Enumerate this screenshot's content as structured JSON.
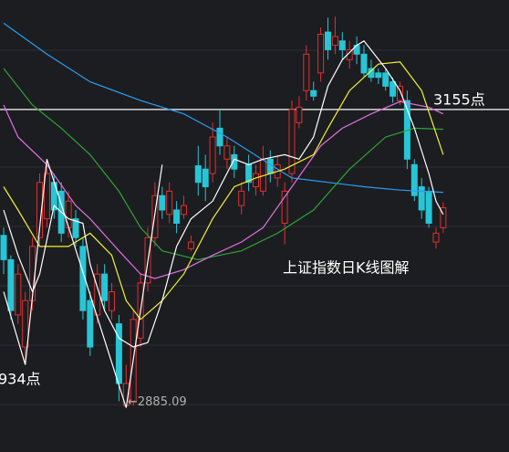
{
  "chart_data": {
    "type": "candlestick",
    "title": "上证指数日K线图解",
    "ylim": [
      2845,
      3254
    ],
    "up_color": "#e0302f",
    "down_color": "#26c6d6",
    "open": [
      3041,
      3019,
      2969,
      2940,
      2982,
      3039,
      3056,
      3089,
      3081,
      3048,
      3056,
      3031,
      2982,
      2969,
      3006,
      2973,
      2961,
      2887,
      2891,
      2948,
      2998,
      3039,
      3077,
      3060,
      3064,
      3060,
      3029,
      3104,
      3101,
      3097,
      3138,
      3110,
      3114,
      3068,
      3105,
      3085,
      3081,
      3110,
      3093,
      3052,
      3097,
      3143,
      3172,
      3172,
      3188,
      3225,
      3213,
      3217,
      3200,
      3213,
      3205,
      3192,
      3188,
      3188,
      3180,
      3163,
      3163,
      3105,
      3085,
      3081,
      3035,
      3048
    ],
    "high": [
      3048,
      3023,
      3015,
      2990,
      3039,
      3097,
      3110,
      3097,
      3089,
      3081,
      3064,
      3039,
      2990,
      3015,
      3015,
      2998,
      2969,
      2924,
      2973,
      3006,
      3048,
      3089,
      3085,
      3089,
      3072,
      3077,
      3041,
      3122,
      3114,
      3143,
      3155,
      3130,
      3122,
      3089,
      3114,
      3105,
      3122,
      3118,
      3114,
      3089,
      3163,
      3167,
      3213,
      3180,
      3229,
      3238,
      3239,
      3225,
      3217,
      3221,
      3213,
      3200,
      3192,
      3192,
      3184,
      3180,
      3172,
      3110,
      3093,
      3085,
      3048,
      3071
    ],
    "low": [
      3006,
      2965,
      2961,
      2924,
      2973,
      3031,
      3048,
      3056,
      3035,
      3039,
      3031,
      2965,
      2932,
      2961,
      2973,
      2965,
      2891,
      2885.09,
      2887,
      2940,
      2990,
      3031,
      3056,
      3052,
      3043,
      3056,
      3027,
      3077,
      3072,
      3089,
      3114,
      3101,
      3093,
      3060,
      3081,
      3077,
      3077,
      3089,
      3085,
      3033,
      3089,
      3138,
      3163,
      3163,
      3180,
      3200,
      3205,
      3200,
      3192,
      3196,
      3184,
      3180,
      3178,
      3172,
      3161,
      3159,
      3101,
      3072,
      3056,
      3048,
      3029,
      3043
    ],
    "close": [
      3019,
      2973,
      3006,
      2982,
      3031,
      3089,
      3097,
      3064,
      3043,
      3072,
      3039,
      2973,
      2940,
      3006,
      2982,
      2990,
      2907,
      2907,
      2965,
      2998,
      3039,
      3077,
      3064,
      3081,
      3052,
      3068,
      3035,
      3089,
      3085,
      3130,
      3122,
      3122,
      3101,
      3081,
      3089,
      3097,
      3110,
      3097,
      3105,
      3081,
      3155,
      3157,
      3205,
      3167,
      3223,
      3209,
      3221,
      3209,
      3209,
      3205,
      3188,
      3184,
      3184,
      3176,
      3167,
      3176,
      3110,
      3077,
      3064,
      3052,
      3043,
      3066
    ],
    "series": [
      {
        "color": "#2a9df4",
        "x": [
          0,
          6,
          12,
          19,
          25,
          31,
          37,
          40,
          45,
          50,
          55,
          61
        ],
        "values": [
          3233,
          3205,
          3180,
          3163,
          3151,
          3130,
          3105,
          3093,
          3089,
          3085,
          3082,
          3080
        ]
      },
      {
        "color": "#2fa335",
        "x": [
          0,
          4,
          8,
          12,
          16,
          19,
          22,
          27,
          33,
          38,
          43,
          48,
          53,
          57,
          61
        ],
        "values": [
          3192,
          3159,
          3138,
          3114,
          3081,
          3048,
          3027,
          3019,
          3027,
          3043,
          3064,
          3101,
          3130,
          3138,
          3137
        ]
      },
      {
        "color": "#e070e0",
        "x": [
          0,
          2,
          6,
          10,
          12,
          16,
          19,
          21,
          25,
          29,
          33,
          36,
          40,
          44,
          47,
          51,
          55,
          59,
          61
        ],
        "values": [
          3159,
          3130,
          3105,
          3068,
          3056,
          3027,
          3006,
          3002,
          3010,
          3023,
          3035,
          3048,
          3085,
          3122,
          3138,
          3151,
          3162,
          3157,
          3151
        ]
      },
      {
        "color": "#f2f230",
        "x": [
          0,
          2,
          5,
          9,
          12,
          15,
          17,
          19,
          22,
          25,
          29,
          32,
          35,
          39,
          43,
          45,
          48,
          52,
          55,
          58,
          61
        ],
        "values": [
          3085,
          3064,
          3031,
          3031,
          3043,
          3023,
          2982,
          2965,
          2982,
          3006,
          3056,
          3085,
          3093,
          3101,
          3114,
          3138,
          3172,
          3196,
          3198,
          3172,
          3114
        ]
      },
      {
        "color": "#ffffff",
        "x": [
          0,
          2,
          4,
          5,
          7,
          9,
          11,
          12,
          14,
          16,
          18,
          20,
          22,
          24,
          26,
          29,
          32,
          34,
          36,
          39,
          41,
          43,
          45,
          47,
          49,
          50,
          53,
          55,
          57,
          59,
          60,
          61
        ],
        "values": [
          3064,
          3023,
          2990,
          3006,
          3068,
          3056,
          3052,
          3015,
          2973,
          2948,
          2940,
          2944,
          2982,
          3031,
          3056,
          3072,
          3110,
          3105,
          3110,
          3114,
          3110,
          3130,
          3176,
          3200,
          3213,
          3217,
          3192,
          3172,
          3138,
          3097,
          3072,
          3060
        ]
      },
      {
        "color": "#ffffff",
        "x": [
          0,
          3,
          6,
          17,
          22
        ],
        "values": [
          2990,
          2924,
          3110,
          2885.09,
          3105
        ]
      }
    ],
    "level": {
      "value": 3155,
      "label": "3155点"
    },
    "low_mark": {
      "value": 2885.09,
      "label": "←2885.09"
    },
    "left_label": "934点"
  }
}
